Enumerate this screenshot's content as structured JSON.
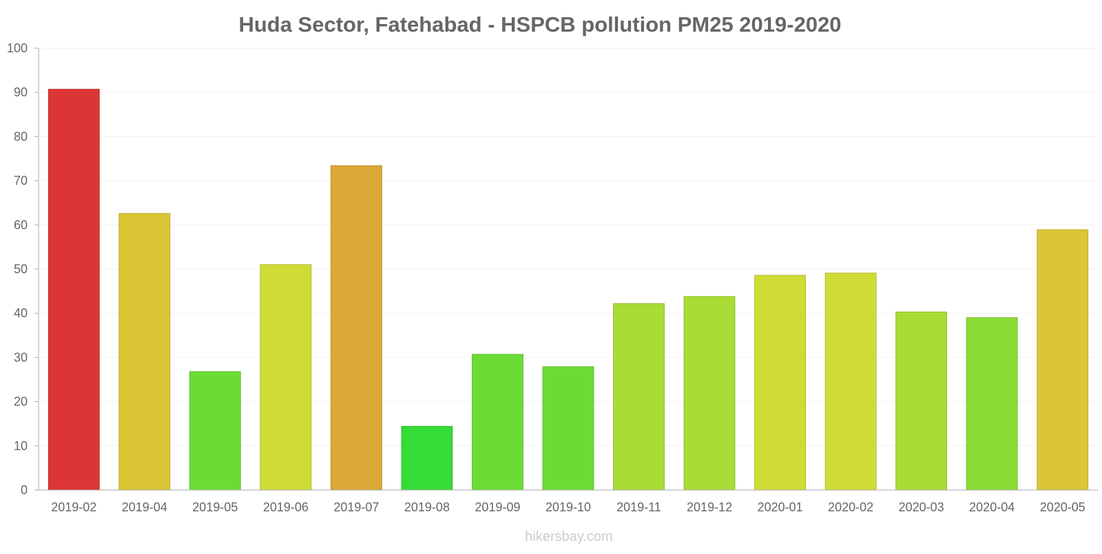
{
  "chart_data": {
    "type": "bar",
    "title": "Huda Sector, Fatehabad - HSPCB pollution PM25 2019-2020",
    "xlabel": "",
    "ylabel": "",
    "ylim": [
      0,
      100
    ],
    "yticks": [
      0,
      10,
      20,
      30,
      40,
      50,
      60,
      70,
      80,
      90,
      100
    ],
    "grid": true,
    "categories": [
      "2019-02",
      "2019-04",
      "2019-05",
      "2019-06",
      "2019-07",
      "2019-08",
      "2019-09",
      "2019-10",
      "2019-11",
      "2019-12",
      "2020-01",
      "2020-02",
      "2020-03",
      "2020-04",
      "2020-05"
    ],
    "values": [
      90.7,
      62.6,
      26.8,
      51.0,
      73.4,
      14.4,
      30.7,
      27.9,
      42.2,
      43.8,
      48.6,
      49.1,
      40.3,
      39.0,
      58.9
    ],
    "colors": [
      "#dc3535",
      "#dbc635",
      "#6bdc35",
      "#cfdc35",
      "#dba835",
      "#35dc35",
      "#6bdc35",
      "#6bdc35",
      "#a9dc35",
      "#a9dc35",
      "#cfdc35",
      "#cfdc35",
      "#a9dc35",
      "#8adc35",
      "#dbc635"
    ]
  },
  "footer": {
    "source": "hikersbay.com"
  }
}
